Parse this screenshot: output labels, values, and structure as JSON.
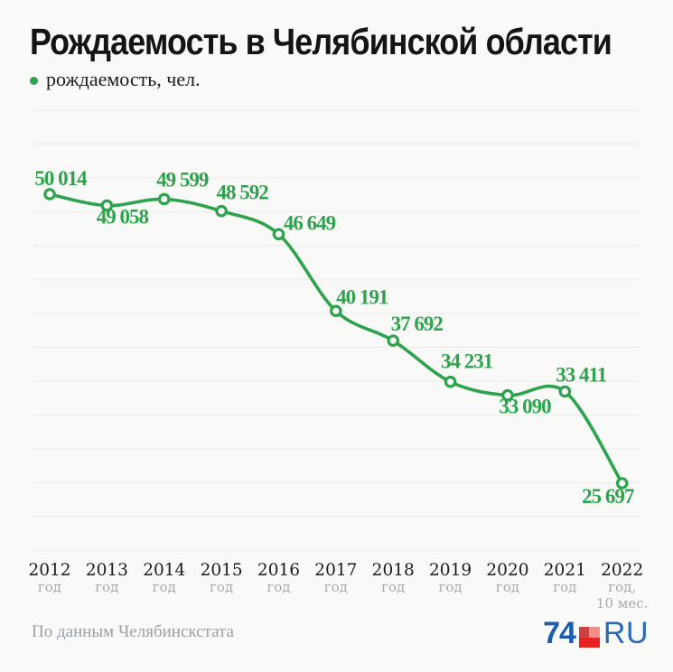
{
  "header": {
    "title": "Рождаемость в Челябинской области",
    "legend_label": "рождаемость, чел."
  },
  "chart_data": {
    "type": "line",
    "title": "Рождаемость в Челябинской области",
    "series_name": "рождаемость, чел.",
    "categories": [
      "2012 год",
      "2013 год",
      "2014 год",
      "2015 год",
      "2016 год",
      "2017 год",
      "2018 год",
      "2019 год",
      "2020 год",
      "2021 год",
      "2022 год, 10 мес."
    ],
    "x_ticks": [
      {
        "year": "2012",
        "sub": "год"
      },
      {
        "year": "2013",
        "sub": "год"
      },
      {
        "year": "2014",
        "sub": "год"
      },
      {
        "year": "2015",
        "sub": "год"
      },
      {
        "year": "2016",
        "sub": "год"
      },
      {
        "year": "2017",
        "sub": "год"
      },
      {
        "year": "2018",
        "sub": "год"
      },
      {
        "year": "2019",
        "sub": "год"
      },
      {
        "year": "2020",
        "sub": "год"
      },
      {
        "year": "2021",
        "sub": "год"
      },
      {
        "year": "2022",
        "sub": "год,",
        "sub2": "10 мес."
      }
    ],
    "values": [
      50014,
      49058,
      49599,
      48592,
      46649,
      40191,
      37692,
      34231,
      33090,
      33411,
      25697
    ],
    "labels": [
      "50 014",
      "49 058",
      "49 599",
      "48 592",
      "46 649",
      "40 191",
      "37 692",
      "34 231",
      "33 090",
      "33 411",
      "25 697"
    ],
    "ylim": [
      24000,
      52000
    ],
    "grid": true,
    "legend_position": "top-left",
    "colors": {
      "line": "#2ea34d",
      "marker_fill": "#f9f9f8",
      "grid": "#f0efed",
      "year_label": "#1b1b1b",
      "sub_label": "#a9a9a9"
    }
  },
  "footer": {
    "source": "По данным Челябинскстата",
    "logo": {
      "part1": "74",
      "part2": "RU",
      "blue": "#1a5db0",
      "red": "#e6231e"
    }
  }
}
